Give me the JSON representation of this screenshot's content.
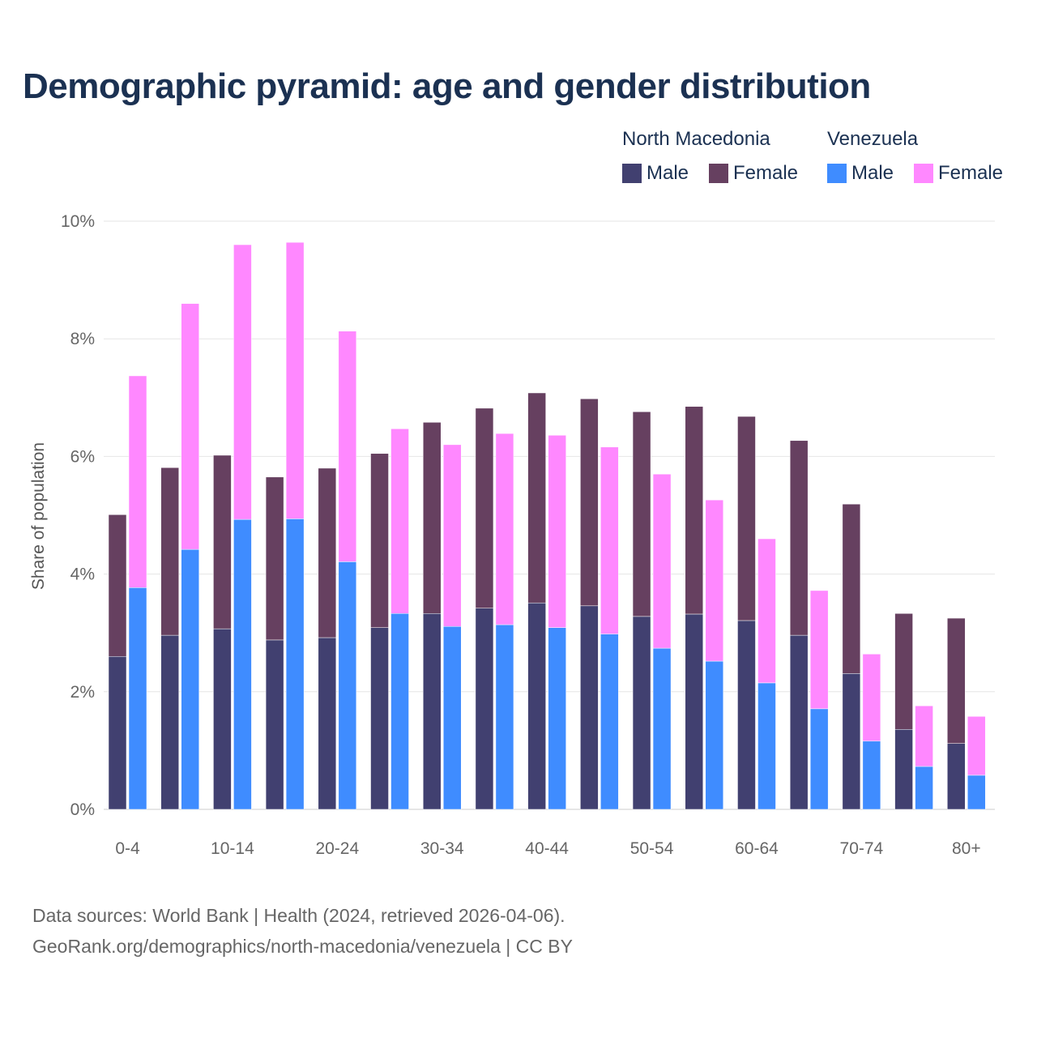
{
  "title": "Demographic pyramid: age and gender distribution",
  "legend": {
    "groups": [
      {
        "name": "North Macedonia",
        "items": [
          {
            "label": "Male",
            "color": "#414070"
          },
          {
            "label": "Female",
            "color": "#664060"
          }
        ]
      },
      {
        "name": "Venezuela",
        "items": [
          {
            "label": "Male",
            "color": "#3f8cff"
          },
          {
            "label": "Female",
            "color": "#ff88ff"
          }
        ]
      }
    ]
  },
  "source_line1": "Data sources: World Bank | Health (2024, retrieved 2026-04-06).",
  "source_line2": "GeoRank.org/demographics/north-macedonia/venezuela | CC BY",
  "chart_data": {
    "type": "bar",
    "stacked": true,
    "title": "Demographic pyramid: age and gender distribution",
    "xlabel": "",
    "ylabel": "Share of population",
    "ylim": [
      0,
      10
    ],
    "yticks": [
      "0%",
      "2%",
      "4%",
      "6%",
      "8%",
      "10%"
    ],
    "ytick_values": [
      0,
      2,
      4,
      6,
      8,
      10
    ],
    "grid": true,
    "legend_position": "top-right",
    "categories": [
      "0-4",
      "5-9",
      "10-14",
      "15-19",
      "20-24",
      "25-29",
      "30-34",
      "35-39",
      "40-44",
      "45-49",
      "50-54",
      "55-59",
      "60-64",
      "65-69",
      "70-74",
      "75-79",
      "80+"
    ],
    "xtick_labels_shown": [
      "0-4",
      "10-14",
      "20-24",
      "30-34",
      "40-44",
      "50-54",
      "60-64",
      "70-74",
      "80+"
    ],
    "series": [
      {
        "name": "North Macedonia Male",
        "stack": "North Macedonia",
        "color": "#414070",
        "values": [
          2.6,
          2.96,
          3.07,
          2.88,
          2.92,
          3.09,
          3.33,
          3.42,
          3.51,
          3.46,
          3.28,
          3.32,
          3.21,
          2.96,
          2.31,
          1.36,
          1.12
        ]
      },
      {
        "name": "North Macedonia Female",
        "stack": "North Macedonia",
        "color": "#664060",
        "values": [
          2.41,
          2.85,
          2.95,
          2.77,
          2.88,
          2.96,
          3.25,
          3.4,
          3.57,
          3.52,
          3.48,
          3.53,
          3.47,
          3.31,
          2.88,
          1.97,
          2.13
        ]
      },
      {
        "name": "Venezuela Male",
        "stack": "Venezuela",
        "color": "#3f8cff",
        "values": [
          3.77,
          4.42,
          4.93,
          4.94,
          4.21,
          3.33,
          3.11,
          3.14,
          3.09,
          2.98,
          2.74,
          2.52,
          2.15,
          1.71,
          1.16,
          0.73,
          0.58
        ]
      },
      {
        "name": "Venezuela Female",
        "stack": "Venezuela",
        "color": "#ff88ff",
        "values": [
          3.6,
          4.18,
          4.67,
          4.7,
          3.92,
          3.14,
          3.09,
          3.25,
          3.27,
          3.18,
          2.96,
          2.74,
          2.45,
          2.01,
          1.48,
          1.03,
          1.0
        ]
      }
    ]
  }
}
